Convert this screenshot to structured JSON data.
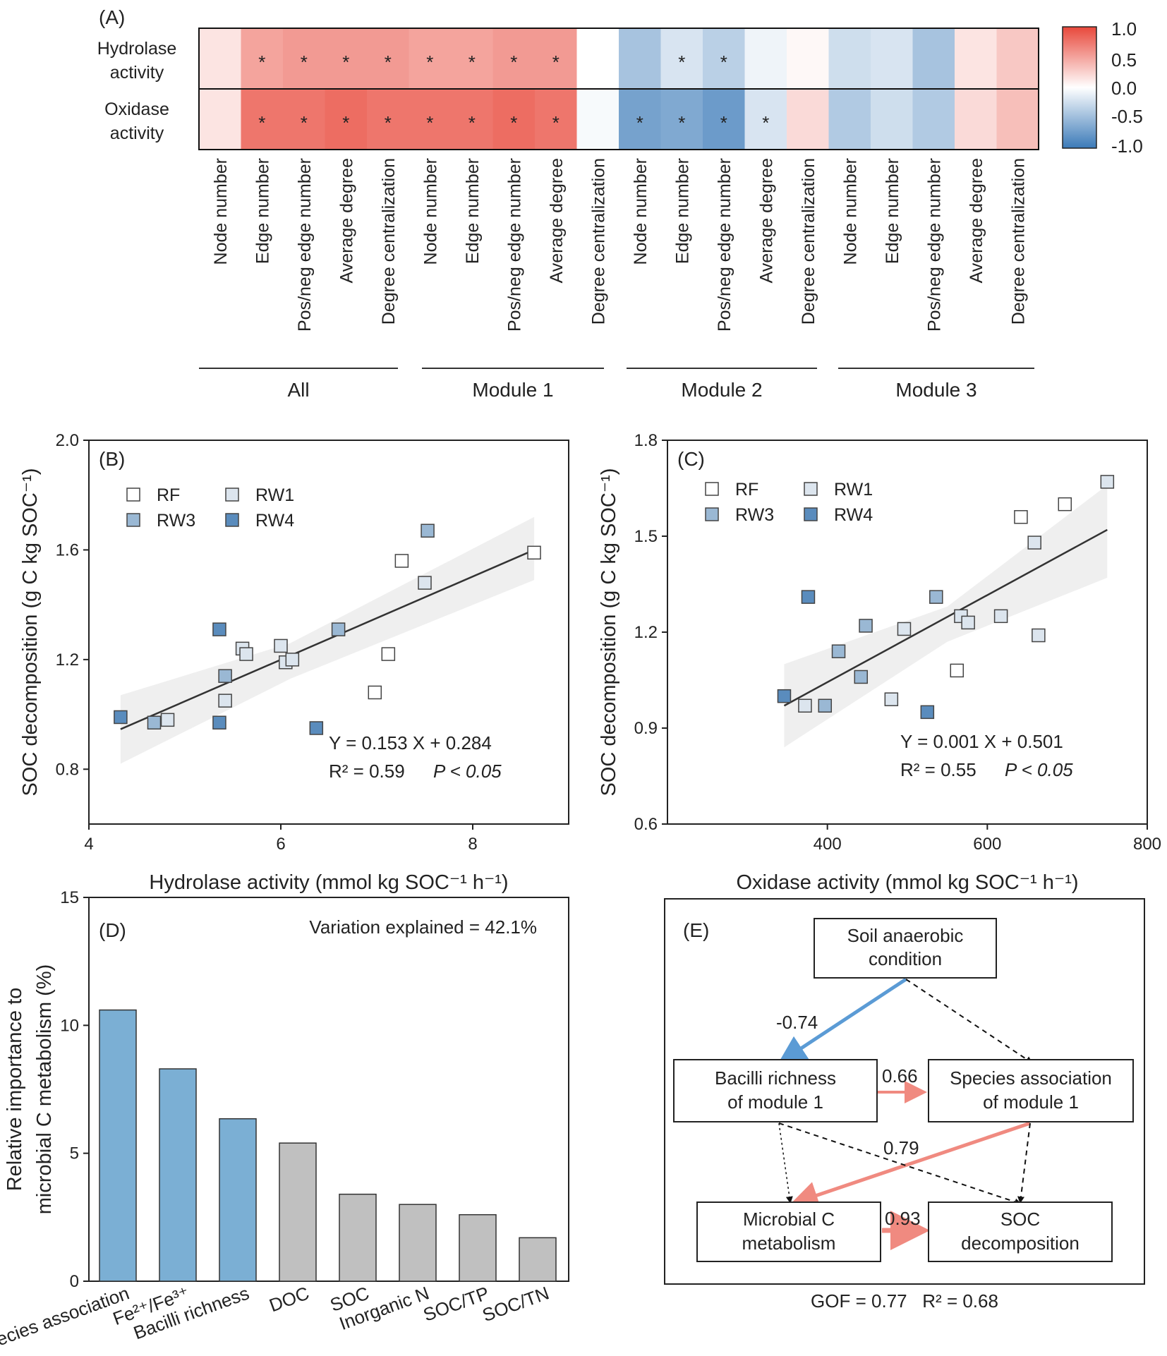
{
  "figure": {
    "panel_labels": {
      "a": "(A)",
      "b": "(B)",
      "c": "(C)",
      "d": "(D)",
      "e": "(E)"
    }
  },
  "chart_data": [
    {
      "id": "A",
      "type": "heatmap",
      "rows": [
        [
          "Hydrolase",
          "activity"
        ],
        [
          "Oxidase",
          "activity"
        ]
      ],
      "columns": [
        "Node number",
        "Edge number",
        "Pos/neg edge number",
        "Average degree",
        "Degree centralization",
        "Node number",
        "Edge number",
        "Pos/neg edge number",
        "Average degree",
        "Degree centralization",
        "Node number",
        "Edge number",
        "Pos/neg edge number",
        "Average degree",
        "Degree centralization",
        "Node number",
        "Edge number",
        "Pos/neg edge number",
        "Average degree",
        "Degree centralization"
      ],
      "groups": [
        {
          "label": "All",
          "from": 0,
          "to": 4
        },
        {
          "label": "Module 1",
          "from": 5,
          "to": 9
        },
        {
          "label": "Module 2",
          "from": 10,
          "to": 14
        },
        {
          "label": "Module 3",
          "from": 15,
          "to": 19
        }
      ],
      "values": [
        [
          0.15,
          0.5,
          0.55,
          0.55,
          0.55,
          0.5,
          0.5,
          0.55,
          0.55,
          0.0,
          -0.45,
          -0.2,
          -0.35,
          -0.08,
          0.04,
          -0.25,
          -0.2,
          -0.45,
          0.15,
          0.3
        ],
        [
          0.15,
          0.75,
          0.75,
          0.8,
          0.75,
          0.75,
          0.75,
          0.8,
          0.75,
          -0.04,
          -0.7,
          -0.65,
          -0.75,
          -0.2,
          0.2,
          -0.4,
          -0.25,
          -0.4,
          0.2,
          0.35
        ]
      ],
      "significance": [
        [
          "",
          "*",
          "*",
          "*",
          "*",
          "*",
          "*",
          "*",
          "*",
          "",
          "",
          "*",
          "*",
          "",
          "",
          "",
          "",
          "",
          "",
          ""
        ],
        [
          "",
          "*",
          "*",
          "*",
          "*",
          "*",
          "*",
          "*",
          "*",
          "",
          "*",
          "*",
          "*",
          "*",
          "",
          "",
          "",
          "",
          "",
          ""
        ]
      ],
      "colorbar": {
        "range": [
          -1.0,
          1.0
        ],
        "ticks": [
          "1.0",
          "0.5",
          "0.0",
          "-0.5",
          "-1.0"
        ]
      },
      "colors": {
        "negative": "#3b7ab8",
        "neutral": "#ffffff",
        "positive": "#e8483b"
      }
    },
    {
      "id": "B",
      "type": "scatter",
      "xlabel": "Hydrolase activity (mmol kg SOC⁻¹ h⁻¹)",
      "ylabel": "SOC decomposition (g C kg SOC⁻¹)",
      "xlim": [
        4,
        9.0
      ],
      "ylim": [
        0.6,
        2.0
      ],
      "xticks": [
        4,
        6,
        8
      ],
      "yticks": [
        0.8,
        1.2,
        1.6,
        2.0
      ],
      "ytick_labels": [
        "0.8",
        "1.2",
        "1.6",
        "2.0"
      ],
      "legend": [
        "RF",
        "RW1",
        "RW3",
        "RW4"
      ],
      "group_colors": {
        "RF": "#ffffff",
        "RW1": "#dce5ee",
        "RW3": "#9ab8d4",
        "RW4": "#5a8cbd"
      },
      "points": [
        {
          "x": 4.33,
          "y": 0.99,
          "group": "RW4"
        },
        {
          "x": 4.68,
          "y": 0.97,
          "group": "RW3"
        },
        {
          "x": 4.82,
          "y": 0.98,
          "group": "RW1"
        },
        {
          "x": 5.36,
          "y": 1.31,
          "group": "RW4"
        },
        {
          "x": 5.36,
          "y": 0.97,
          "group": "RW4"
        },
        {
          "x": 5.42,
          "y": 1.14,
          "group": "RW3"
        },
        {
          "x": 5.42,
          "y": 1.05,
          "group": "RW1"
        },
        {
          "x": 5.6,
          "y": 1.24,
          "group": "RW1"
        },
        {
          "x": 5.64,
          "y": 1.22,
          "group": "RW1"
        },
        {
          "x": 6.0,
          "y": 1.25,
          "group": "RW1"
        },
        {
          "x": 6.05,
          "y": 1.19,
          "group": "RW1"
        },
        {
          "x": 6.12,
          "y": 1.2,
          "group": "RW1"
        },
        {
          "x": 6.37,
          "y": 0.95,
          "group": "RW4"
        },
        {
          "x": 6.6,
          "y": 1.31,
          "group": "RW3"
        },
        {
          "x": 6.98,
          "y": 1.08,
          "group": "RF"
        },
        {
          "x": 7.12,
          "y": 1.22,
          "group": "RF"
        },
        {
          "x": 7.26,
          "y": 1.56,
          "group": "RF"
        },
        {
          "x": 7.5,
          "y": 1.48,
          "group": "RW1"
        },
        {
          "x": 7.53,
          "y": 1.67,
          "group": "RW3"
        },
        {
          "x": 8.64,
          "y": 1.59,
          "group": "RF"
        }
      ],
      "fit": {
        "x": [
          4.33,
          8.64
        ],
        "y": [
          0.946,
          1.6
        ]
      },
      "ci": {
        "x": [
          4.33,
          6.1,
          8.64
        ],
        "upper": [
          1.07,
          1.26,
          1.72
        ],
        "lower": [
          0.82,
          1.13,
          1.49
        ]
      },
      "equation": "Y = 0.153 X + 0.284",
      "r2_label": "R² = 0.59",
      "p_label": "P < 0.05"
    },
    {
      "id": "C",
      "type": "scatter",
      "xlabel": "Oxidase activity (mmol kg SOC⁻¹ h⁻¹)",
      "ylabel": "SOC decomposition (g C kg SOC⁻¹)",
      "xlim": [
        200,
        800
      ],
      "ylim": [
        0.6,
        1.8
      ],
      "xticks": [
        400,
        600,
        800
      ],
      "yticks": [
        0.6,
        0.9,
        1.2,
        1.5,
        1.8
      ],
      "ytick_labels": [
        "0.6",
        "0.9",
        "1.2",
        "1.5",
        "1.8"
      ],
      "legend": [
        "RF",
        "RW1",
        "RW3",
        "RW4"
      ],
      "group_colors": {
        "RF": "#ffffff",
        "RW1": "#dce5ee",
        "RW3": "#9ab8d4",
        "RW4": "#5a8cbd"
      },
      "points": [
        {
          "x": 346,
          "y": 1.0,
          "group": "RW4"
        },
        {
          "x": 372,
          "y": 0.97,
          "group": "RW1"
        },
        {
          "x": 376,
          "y": 1.31,
          "group": "RW4"
        },
        {
          "x": 397,
          "y": 0.97,
          "group": "RW3"
        },
        {
          "x": 414,
          "y": 1.14,
          "group": "RW3"
        },
        {
          "x": 442,
          "y": 1.06,
          "group": "RW3"
        },
        {
          "x": 448,
          "y": 1.22,
          "group": "RW3"
        },
        {
          "x": 480,
          "y": 0.99,
          "group": "RW1"
        },
        {
          "x": 496,
          "y": 1.21,
          "group": "RW1"
        },
        {
          "x": 525,
          "y": 0.95,
          "group": "RW4"
        },
        {
          "x": 536,
          "y": 1.31,
          "group": "RW3"
        },
        {
          "x": 562,
          "y": 1.08,
          "group": "RF"
        },
        {
          "x": 567,
          "y": 1.25,
          "group": "RW1"
        },
        {
          "x": 576,
          "y": 1.23,
          "group": "RW1"
        },
        {
          "x": 617,
          "y": 1.25,
          "group": "RW1"
        },
        {
          "x": 642,
          "y": 1.56,
          "group": "RF"
        },
        {
          "x": 659,
          "y": 1.48,
          "group": "RW1"
        },
        {
          "x": 664,
          "y": 1.19,
          "group": "RW1"
        },
        {
          "x": 697,
          "y": 1.6,
          "group": "RF"
        },
        {
          "x": 750,
          "y": 1.67,
          "group": "RW1"
        }
      ],
      "fit": {
        "x": [
          346,
          750
        ],
        "y": [
          0.97,
          1.52
        ]
      },
      "ci": {
        "x": [
          346,
          550,
          750
        ],
        "upper": [
          1.1,
          1.28,
          1.66
        ],
        "lower": [
          0.84,
          1.17,
          1.37
        ]
      },
      "equation": "Y = 0.001 X + 0.501",
      "r2_label": "R² = 0.55",
      "p_label": "P < 0.05"
    },
    {
      "id": "D",
      "type": "bar",
      "categories": [
        "Species association",
        "Fe²⁺/Fe³⁺",
        "Bacilli richness",
        "DOC",
        "SOC",
        "Inorganic N",
        "SOC/TP",
        "SOC/TN"
      ],
      "values": [
        10.6,
        8.3,
        6.35,
        5.4,
        3.4,
        3.0,
        2.6,
        1.7
      ],
      "bar_colors": [
        "#7bafd4",
        "#7bafd4",
        "#7bafd4",
        "#c0c0c0",
        "#c0c0c0",
        "#c0c0c0",
        "#c0c0c0",
        "#c0c0c0"
      ],
      "ylim": [
        0,
        15
      ],
      "yticks": [
        0,
        5,
        10,
        15
      ],
      "ylabel_lines": [
        "Relative importance to",
        "microbial C metabolism (%)"
      ],
      "annotation": "Variation explained = 42.1%"
    }
  ],
  "sem": {
    "nodes": {
      "soil": [
        "Soil anaerobic",
        "condition"
      ],
      "bacilli": [
        "Bacilli richness",
        "of module 1"
      ],
      "species": [
        "Species association",
        "of module 1"
      ],
      "microbial": [
        "Microbial C",
        "metabolism"
      ],
      "soc": [
        "SOC",
        "decomposition"
      ]
    },
    "paths": [
      {
        "from": "soil",
        "to": "bacilli",
        "coef": "-0.74",
        "sign": "negative"
      },
      {
        "from": "bacilli",
        "to": "species",
        "coef": "0.66",
        "sign": "positive"
      },
      {
        "from": "species",
        "to": "microbial",
        "coef": "0.79",
        "sign": "positive"
      },
      {
        "from": "microbial",
        "to": "soc",
        "coef": "0.93",
        "sign": "positive"
      }
    ],
    "fit_stats": "GOF = 0.77   R² = 0.68",
    "colors": {
      "positive": "#f08a80",
      "negative": "#5b9bd5"
    }
  }
}
